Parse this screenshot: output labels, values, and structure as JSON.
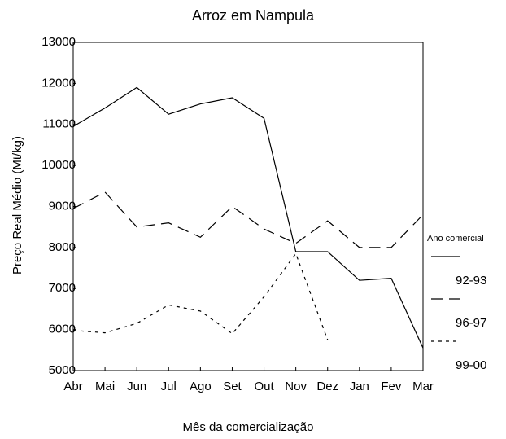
{
  "chart_data": {
    "type": "line",
    "title": "Arroz em Nampula",
    "x_label": "Mês da comercialização",
    "y_label": "Preço Real Médio (Mt/kg)",
    "legend_title": "Ano comercial",
    "categories": [
      "Abr",
      "Mai",
      "Jun",
      "Jul",
      "Ago",
      "Set",
      "Out",
      "Nov",
      "Dez",
      "Jan",
      "Fev",
      "Mar"
    ],
    "series": [
      {
        "name": "92-93",
        "color": "#000000",
        "line_style": "solid",
        "values": [
          10950,
          11400,
          11900,
          11250,
          11500,
          11650,
          11150,
          7900,
          7900,
          7200,
          7250,
          5550
        ]
      },
      {
        "name": "96-97",
        "color": "#000000",
        "line_style": "long-dash",
        "values": [
          8950,
          9350,
          8500,
          8600,
          8250,
          9000,
          8450,
          8100,
          8650,
          8000,
          8000,
          8800
        ]
      },
      {
        "name": "99-00",
        "color": "#000000",
        "line_style": "short-dash",
        "values": [
          5980,
          5920,
          6150,
          6600,
          6450,
          5900,
          6800,
          7850,
          5750,
          null,
          null,
          null
        ]
      }
    ],
    "ylim": [
      5000,
      13000
    ],
    "yticks": [
      5000,
      6000,
      7000,
      8000,
      9000,
      10000,
      11000,
      12000,
      13000
    ],
    "grid": false,
    "legend": "right"
  }
}
